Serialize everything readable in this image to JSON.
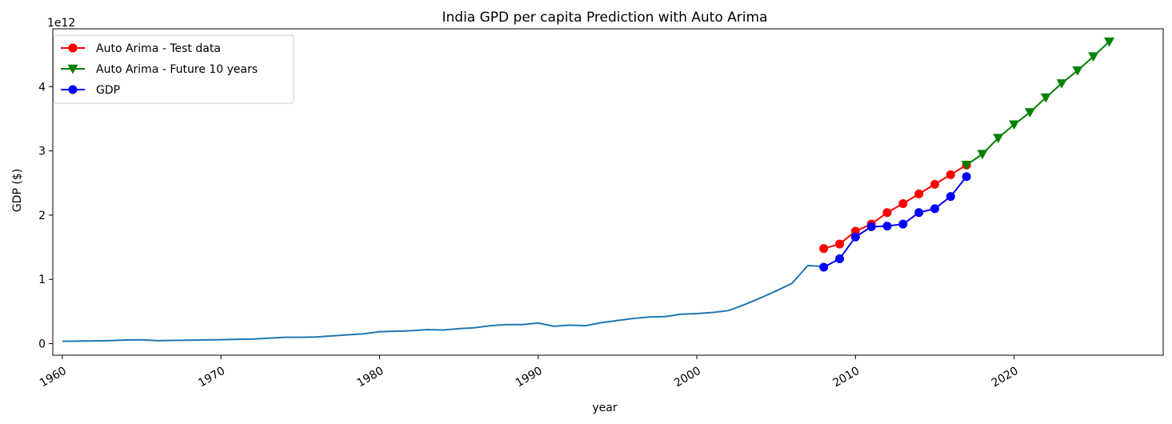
{
  "chart_data": {
    "type": "line",
    "title": "India GPD per capita Prediction with Auto Arima",
    "xlabel": "year",
    "ylabel": "GDP ($)",
    "y_offset_label": "1e12",
    "y_scale": 1000000000000.0,
    "xlim": [
      1959.4,
      2029.4
    ],
    "ylim": [
      -180000000000.0,
      4900000000000.0
    ],
    "x_ticks": [
      1960,
      1970,
      1980,
      1990,
      2000,
      2010,
      2020
    ],
    "x_tick_labels": [
      "1960",
      "1970",
      "1980",
      "1990",
      "2000",
      "2010",
      "2020"
    ],
    "y_ticks": [
      0,
      1000000000000.0,
      2000000000000.0,
      3000000000000.0,
      4000000000000.0
    ],
    "y_tick_labels": [
      "0",
      "1",
      "2",
      "3",
      "4"
    ],
    "legend_position": "top-left",
    "series": [
      {
        "name": "",
        "color": "#1f77b4",
        "marker": "none",
        "x": [
          1960,
          1961,
          1962,
          1963,
          1964,
          1965,
          1966,
          1967,
          1968,
          1969,
          1970,
          1971,
          1972,
          1973,
          1974,
          1975,
          1976,
          1977,
          1978,
          1979,
          1980,
          1981,
          1982,
          1983,
          1984,
          1985,
          1986,
          1987,
          1988,
          1989,
          1990,
          1991,
          1992,
          1993,
          1994,
          1995,
          1996,
          1997,
          1998,
          1999,
          2000,
          2001,
          2002,
          2003,
          2004,
          2005,
          2006,
          2007,
          2008
        ],
        "y": [
          37000000000.0,
          39000000000.0,
          42000000000.0,
          48000000000.0,
          56000000000.0,
          59000000000.0,
          46000000000.0,
          50000000000.0,
          53000000000.0,
          58000000000.0,
          62000000000.0,
          67000000000.0,
          71000000000.0,
          85000000000.0,
          99000000000.0,
          98000000000.0,
          103000000000.0,
          121000000000.0,
          137000000000.0,
          153000000000.0,
          186000000000.0,
          193000000000.0,
          201000000000.0,
          218000000000.0,
          212000000000.0,
          232000000000.0,
          248000000000.0,
          279000000000.0,
          297000000000.0,
          296000000000.0,
          321000000000.0,
          270000000000.0,
          288000000000.0,
          279000000000.0,
          327000000000.0,
          360000000000.0,
          392000000000.0,
          415000000000.0,
          421000000000.0,
          458000000000.0,
          468000000000.0,
          485000000000.0,
          515000000000.0,
          607000000000.0,
          709000000000.0,
          820000000000.0,
          940000000000.0,
          1216000000000.0,
          1199000000000.0
        ]
      },
      {
        "name": "Auto Arima - Test data",
        "color": "#ff0000",
        "marker": "circle",
        "x": [
          2008,
          2009,
          2010,
          2011,
          2012,
          2013,
          2014,
          2015,
          2016,
          2017
        ],
        "y": [
          1480000000000.0,
          1550000000000.0,
          1750000000000.0,
          1860000000000.0,
          2040000000000.0,
          2180000000000.0,
          2330000000000.0,
          2480000000000.0,
          2630000000000.0,
          2780000000000.0
        ]
      },
      {
        "name": "Auto Arima - Future 10 years",
        "color": "#008000",
        "marker": "triangle-down",
        "x": [
          2017,
          2018,
          2019,
          2020,
          2021,
          2022,
          2023,
          2024,
          2025,
          2026
        ],
        "y": [
          2780000000000.0,
          2950000000000.0,
          3200000000000.0,
          3410000000000.0,
          3600000000000.0,
          3830000000000.0,
          4050000000000.0,
          4250000000000.0,
          4470000000000.0,
          4700000000000.0
        ]
      },
      {
        "name": "GDP",
        "color": "#0000ff",
        "marker": "circle",
        "x": [
          2008,
          2009,
          2010,
          2011,
          2012,
          2013,
          2014,
          2015,
          2016,
          2017
        ],
        "y": [
          1190000000000.0,
          1320000000000.0,
          1660000000000.0,
          1820000000000.0,
          1830000000000.0,
          1860000000000.0,
          2040000000000.0,
          2100000000000.0,
          2290000000000.0,
          2600000000000.0
        ]
      }
    ],
    "legend_entries": [
      "Auto Arima - Test data",
      "Auto Arima - Future 10 years",
      "GDP"
    ]
  }
}
